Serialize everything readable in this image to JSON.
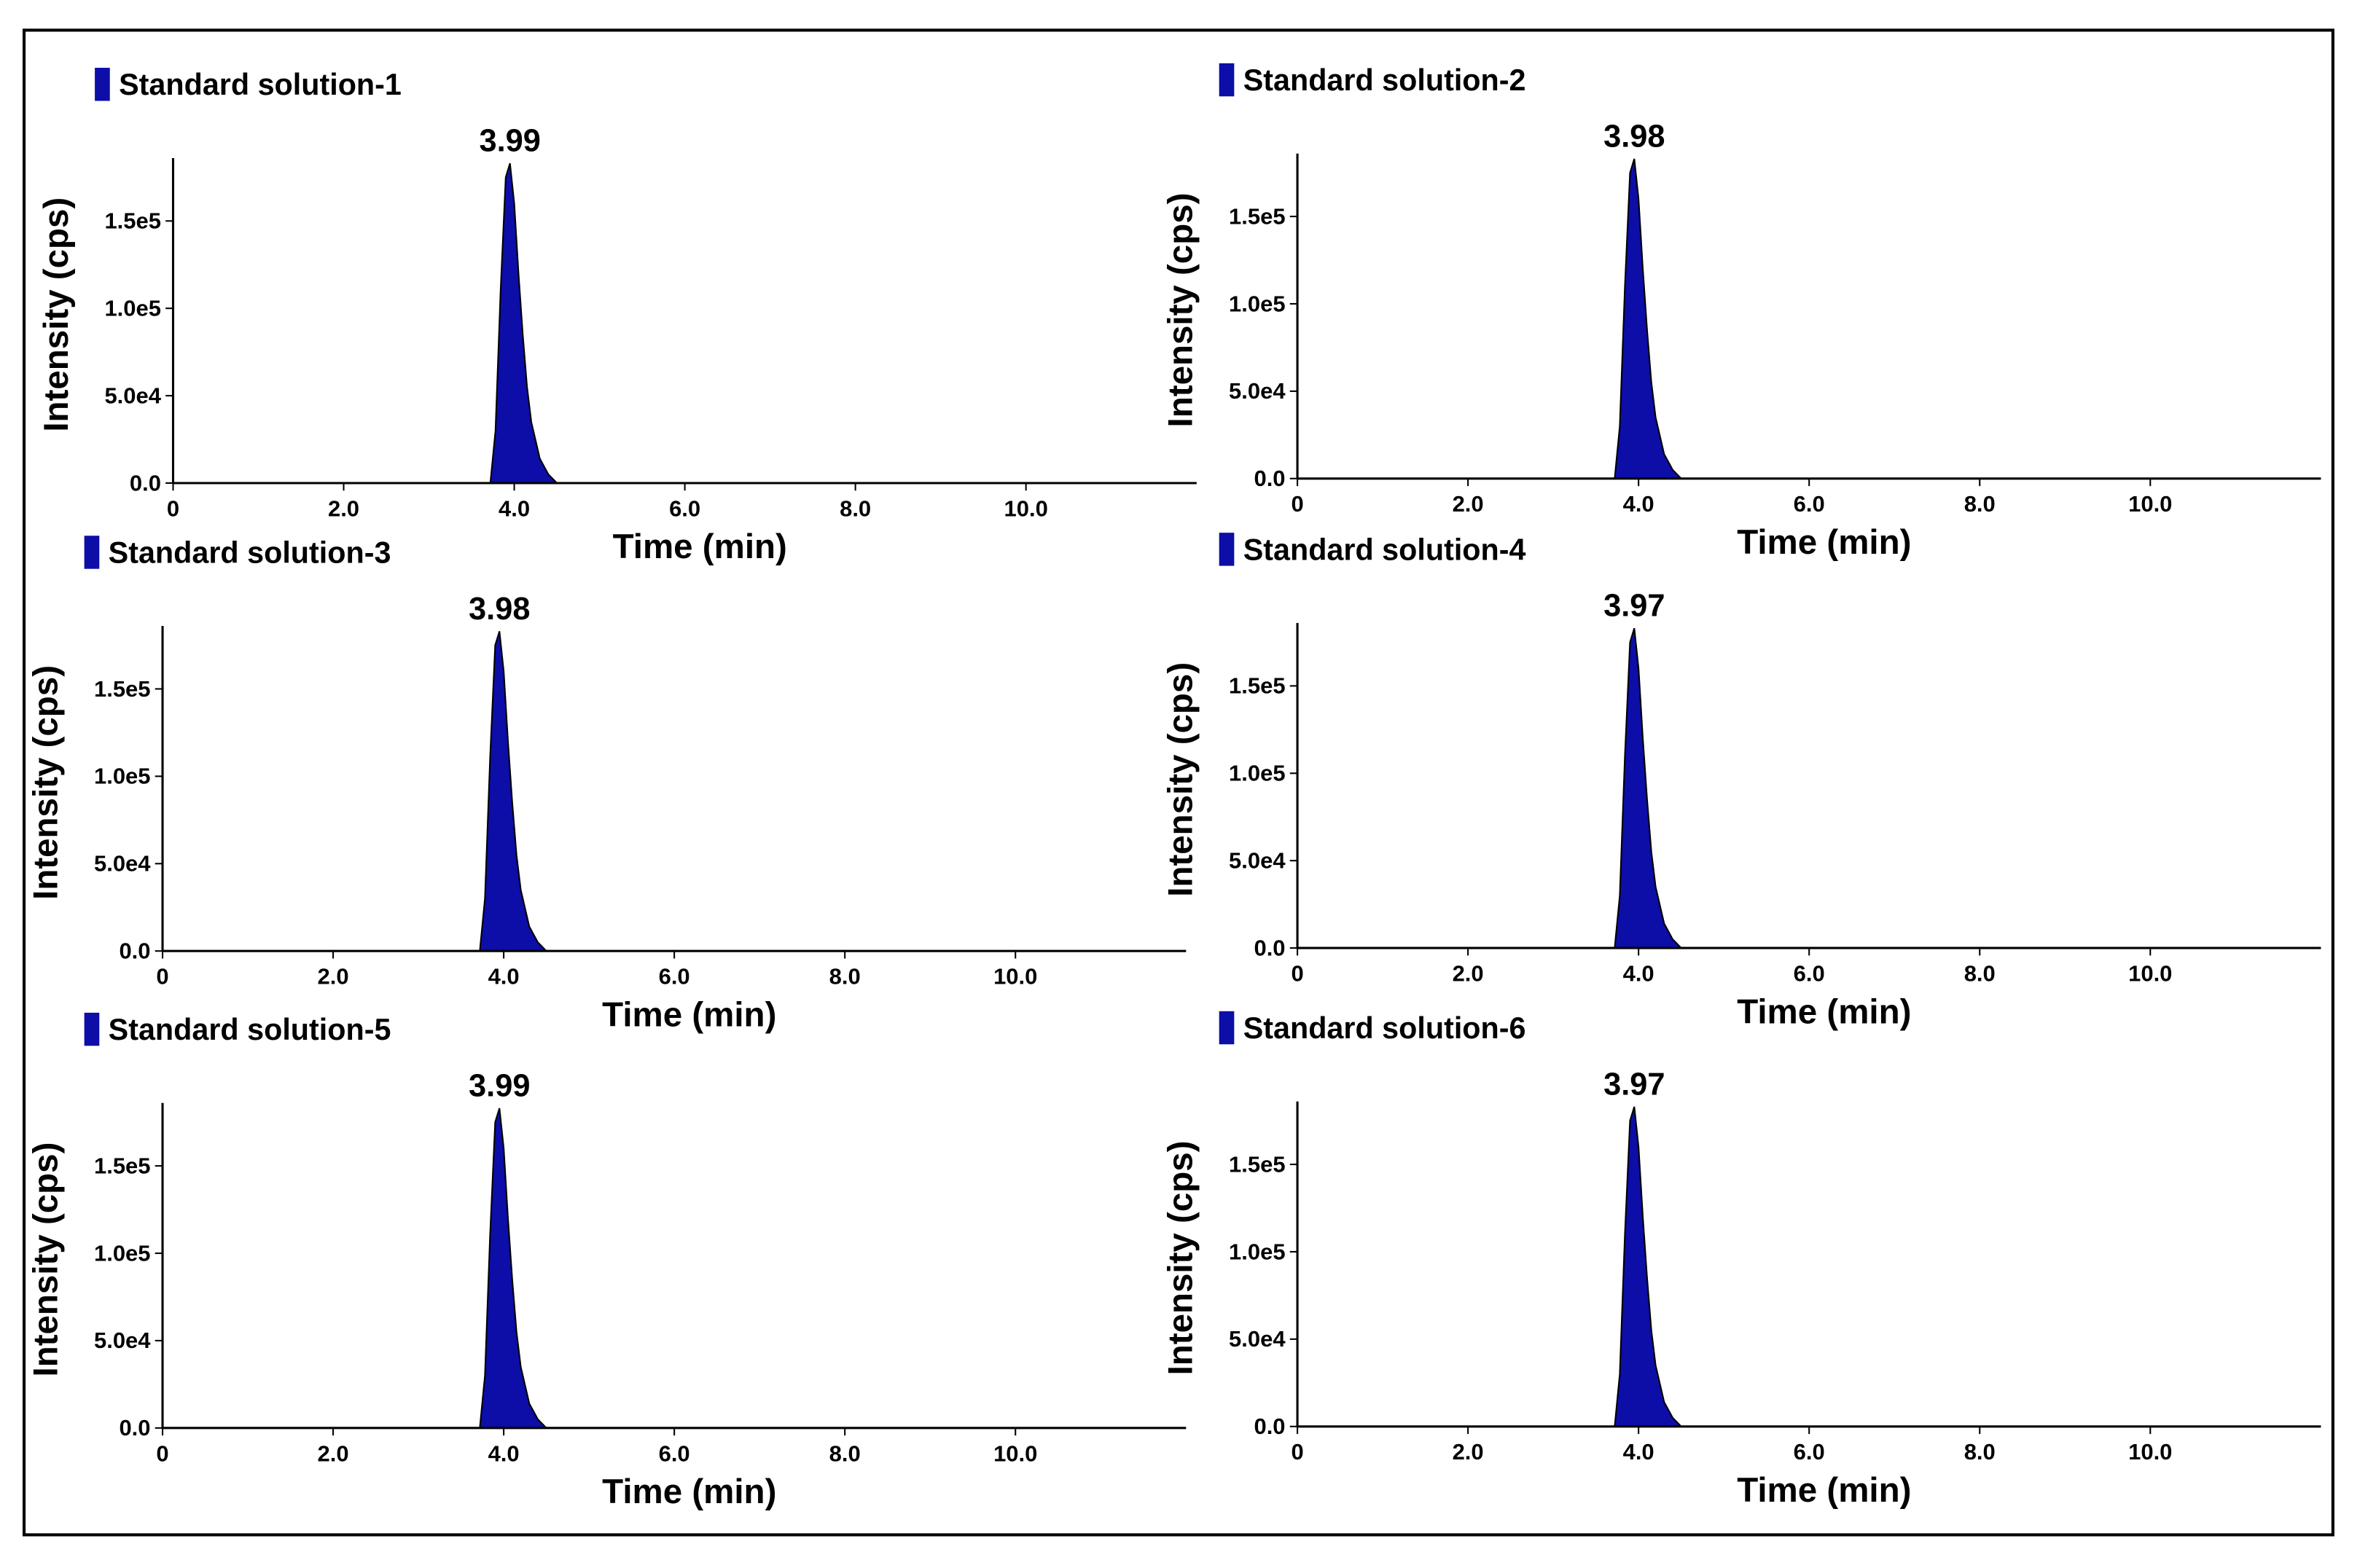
{
  "chart_data": [
    {
      "type": "area",
      "x_label": "Time (min)",
      "y_label": "Intensity (cps)",
      "annotation": "3.99",
      "x": [
        0,
        3.72,
        3.78,
        3.84,
        3.9,
        3.95,
        4.0,
        4.05,
        4.1,
        4.15,
        4.2,
        4.3,
        4.4,
        4.5,
        12
      ],
      "series": [
        {
          "name": "Standard solution-1",
          "color": "#0d0da8",
          "values": [
            0,
            0,
            30000,
            110000,
            175000,
            183000,
            160000,
            120000,
            85000,
            55000,
            35000,
            14000,
            5000,
            0,
            0
          ]
        }
      ],
      "xlim": [
        0,
        12
      ],
      "ylim": [
        0,
        186000
      ],
      "xticks": [
        0,
        {
          "value": 2,
          "label": "2.0"
        },
        {
          "value": 4,
          "label": "4.0"
        },
        {
          "value": 6,
          "label": "6.0"
        },
        {
          "value": 8,
          "label": "8.0"
        },
        {
          "value": 10,
          "label": "10.0"
        }
      ],
      "yticks": [
        {
          "value": 0,
          "label": "0.0"
        },
        {
          "value": 50000,
          "label": "5.0e4"
        },
        {
          "value": 100000,
          "label": "1.0e5"
        },
        {
          "value": 150000,
          "label": "1.5e5"
        }
      ]
    },
    {
      "type": "area",
      "x_label": "Time (min)",
      "y_label": "Intensity (cps)",
      "annotation": "3.98",
      "x": [
        0,
        3.72,
        3.78,
        3.84,
        3.9,
        3.95,
        4.0,
        4.05,
        4.1,
        4.15,
        4.2,
        4.3,
        4.4,
        4.5,
        12
      ],
      "series": [
        {
          "name": "Standard solution-2",
          "color": "#0d0da8",
          "values": [
            0,
            0,
            30000,
            110000,
            175000,
            183000,
            160000,
            120000,
            85000,
            55000,
            35000,
            14000,
            5000,
            0,
            0
          ]
        }
      ],
      "xlim": [
        0,
        12
      ],
      "ylim": [
        0,
        186000
      ],
      "xticks": [
        0,
        {
          "value": 2,
          "label": "2.0"
        },
        {
          "value": 4,
          "label": "4.0"
        },
        {
          "value": 6,
          "label": "6.0"
        },
        {
          "value": 8,
          "label": "8.0"
        },
        {
          "value": 10,
          "label": "10.0"
        }
      ],
      "yticks": [
        {
          "value": 0,
          "label": "0.0"
        },
        {
          "value": 50000,
          "label": "5.0e4"
        },
        {
          "value": 100000,
          "label": "1.0e5"
        },
        {
          "value": 150000,
          "label": "1.5e5"
        }
      ]
    },
    {
      "type": "area",
      "x_label": "Time (min)",
      "y_label": "Intensity (cps)",
      "annotation": "3.98",
      "x": [
        0,
        3.72,
        3.78,
        3.84,
        3.9,
        3.95,
        4.0,
        4.05,
        4.1,
        4.15,
        4.2,
        4.3,
        4.4,
        4.5,
        12
      ],
      "series": [
        {
          "name": "Standard solution-3",
          "color": "#0d0da8",
          "values": [
            0,
            0,
            30000,
            110000,
            175000,
            183000,
            160000,
            120000,
            85000,
            55000,
            35000,
            14000,
            5000,
            0,
            0
          ]
        }
      ],
      "xlim": [
        0,
        12
      ],
      "ylim": [
        0,
        186000
      ],
      "xticks": [
        0,
        {
          "value": 2,
          "label": "2.0"
        },
        {
          "value": 4,
          "label": "4.0"
        },
        {
          "value": 6,
          "label": "6.0"
        },
        {
          "value": 8,
          "label": "8.0"
        },
        {
          "value": 10,
          "label": "10.0"
        }
      ],
      "yticks": [
        {
          "value": 0,
          "label": "0.0"
        },
        {
          "value": 50000,
          "label": "5.0e4"
        },
        {
          "value": 100000,
          "label": "1.0e5"
        },
        {
          "value": 150000,
          "label": "1.5e5"
        }
      ]
    },
    {
      "type": "area",
      "x_label": "Time (min)",
      "y_label": "Intensity (cps)",
      "annotation": "3.97",
      "x": [
        0,
        3.72,
        3.78,
        3.84,
        3.9,
        3.95,
        4.0,
        4.05,
        4.1,
        4.15,
        4.2,
        4.3,
        4.4,
        4.5,
        12
      ],
      "series": [
        {
          "name": "Standard solution-4",
          "color": "#0d0da8",
          "values": [
            0,
            0,
            30000,
            110000,
            175000,
            183000,
            160000,
            120000,
            85000,
            55000,
            35000,
            14000,
            5000,
            0,
            0
          ]
        }
      ],
      "xlim": [
        0,
        12
      ],
      "ylim": [
        0,
        186000
      ],
      "xticks": [
        0,
        {
          "value": 2,
          "label": "2.0"
        },
        {
          "value": 4,
          "label": "4.0"
        },
        {
          "value": 6,
          "label": "6.0"
        },
        {
          "value": 8,
          "label": "8.0"
        },
        {
          "value": 10,
          "label": "10.0"
        }
      ],
      "yticks": [
        {
          "value": 0,
          "label": "0.0"
        },
        {
          "value": 50000,
          "label": "5.0e4"
        },
        {
          "value": 100000,
          "label": "1.0e5"
        },
        {
          "value": 150000,
          "label": "1.5e5"
        }
      ]
    },
    {
      "type": "area",
      "x_label": "Time (min)",
      "y_label": "Intensity (cps)",
      "annotation": "3.99",
      "x": [
        0,
        3.72,
        3.78,
        3.84,
        3.9,
        3.95,
        4.0,
        4.05,
        4.1,
        4.15,
        4.2,
        4.3,
        4.4,
        4.5,
        12
      ],
      "series": [
        {
          "name": "Standard solution-5",
          "color": "#0d0da8",
          "values": [
            0,
            0,
            30000,
            110000,
            175000,
            183000,
            160000,
            120000,
            85000,
            55000,
            35000,
            14000,
            5000,
            0,
            0
          ]
        }
      ],
      "xlim": [
        0,
        12
      ],
      "ylim": [
        0,
        186000
      ],
      "xticks": [
        0,
        {
          "value": 2,
          "label": "2.0"
        },
        {
          "value": 4,
          "label": "4.0"
        },
        {
          "value": 6,
          "label": "6.0"
        },
        {
          "value": 8,
          "label": "8.0"
        },
        {
          "value": 10,
          "label": "10.0"
        }
      ],
      "yticks": [
        {
          "value": 0,
          "label": "0.0"
        },
        {
          "value": 50000,
          "label": "5.0e4"
        },
        {
          "value": 100000,
          "label": "1.0e5"
        },
        {
          "value": 150000,
          "label": "1.5e5"
        }
      ]
    },
    {
      "type": "area",
      "x_label": "Time (min)",
      "y_label": "Intensity (cps)",
      "annotation": "3.97",
      "x": [
        0,
        3.72,
        3.78,
        3.84,
        3.9,
        3.95,
        4.0,
        4.05,
        4.1,
        4.15,
        4.2,
        4.3,
        4.4,
        4.5,
        12
      ],
      "series": [
        {
          "name": "Standard solution-6",
          "color": "#0d0da8",
          "values": [
            0,
            0,
            30000,
            110000,
            175000,
            183000,
            160000,
            120000,
            85000,
            55000,
            35000,
            14000,
            5000,
            0,
            0
          ]
        }
      ],
      "xlim": [
        0,
        12
      ],
      "ylim": [
        0,
        186000
      ],
      "xticks": [
        0,
        {
          "value": 2,
          "label": "2.0"
        },
        {
          "value": 4,
          "label": "4.0"
        },
        {
          "value": 6,
          "label": "6.0"
        },
        {
          "value": 8,
          "label": "8.0"
        },
        {
          "value": 10,
          "label": "10.0"
        }
      ],
      "yticks": [
        {
          "value": 0,
          "label": "0.0"
        },
        {
          "value": 50000,
          "label": "5.0e4"
        },
        {
          "value": 100000,
          "label": "1.0e5"
        },
        {
          "value": 150000,
          "label": "1.5e5"
        }
      ]
    }
  ]
}
